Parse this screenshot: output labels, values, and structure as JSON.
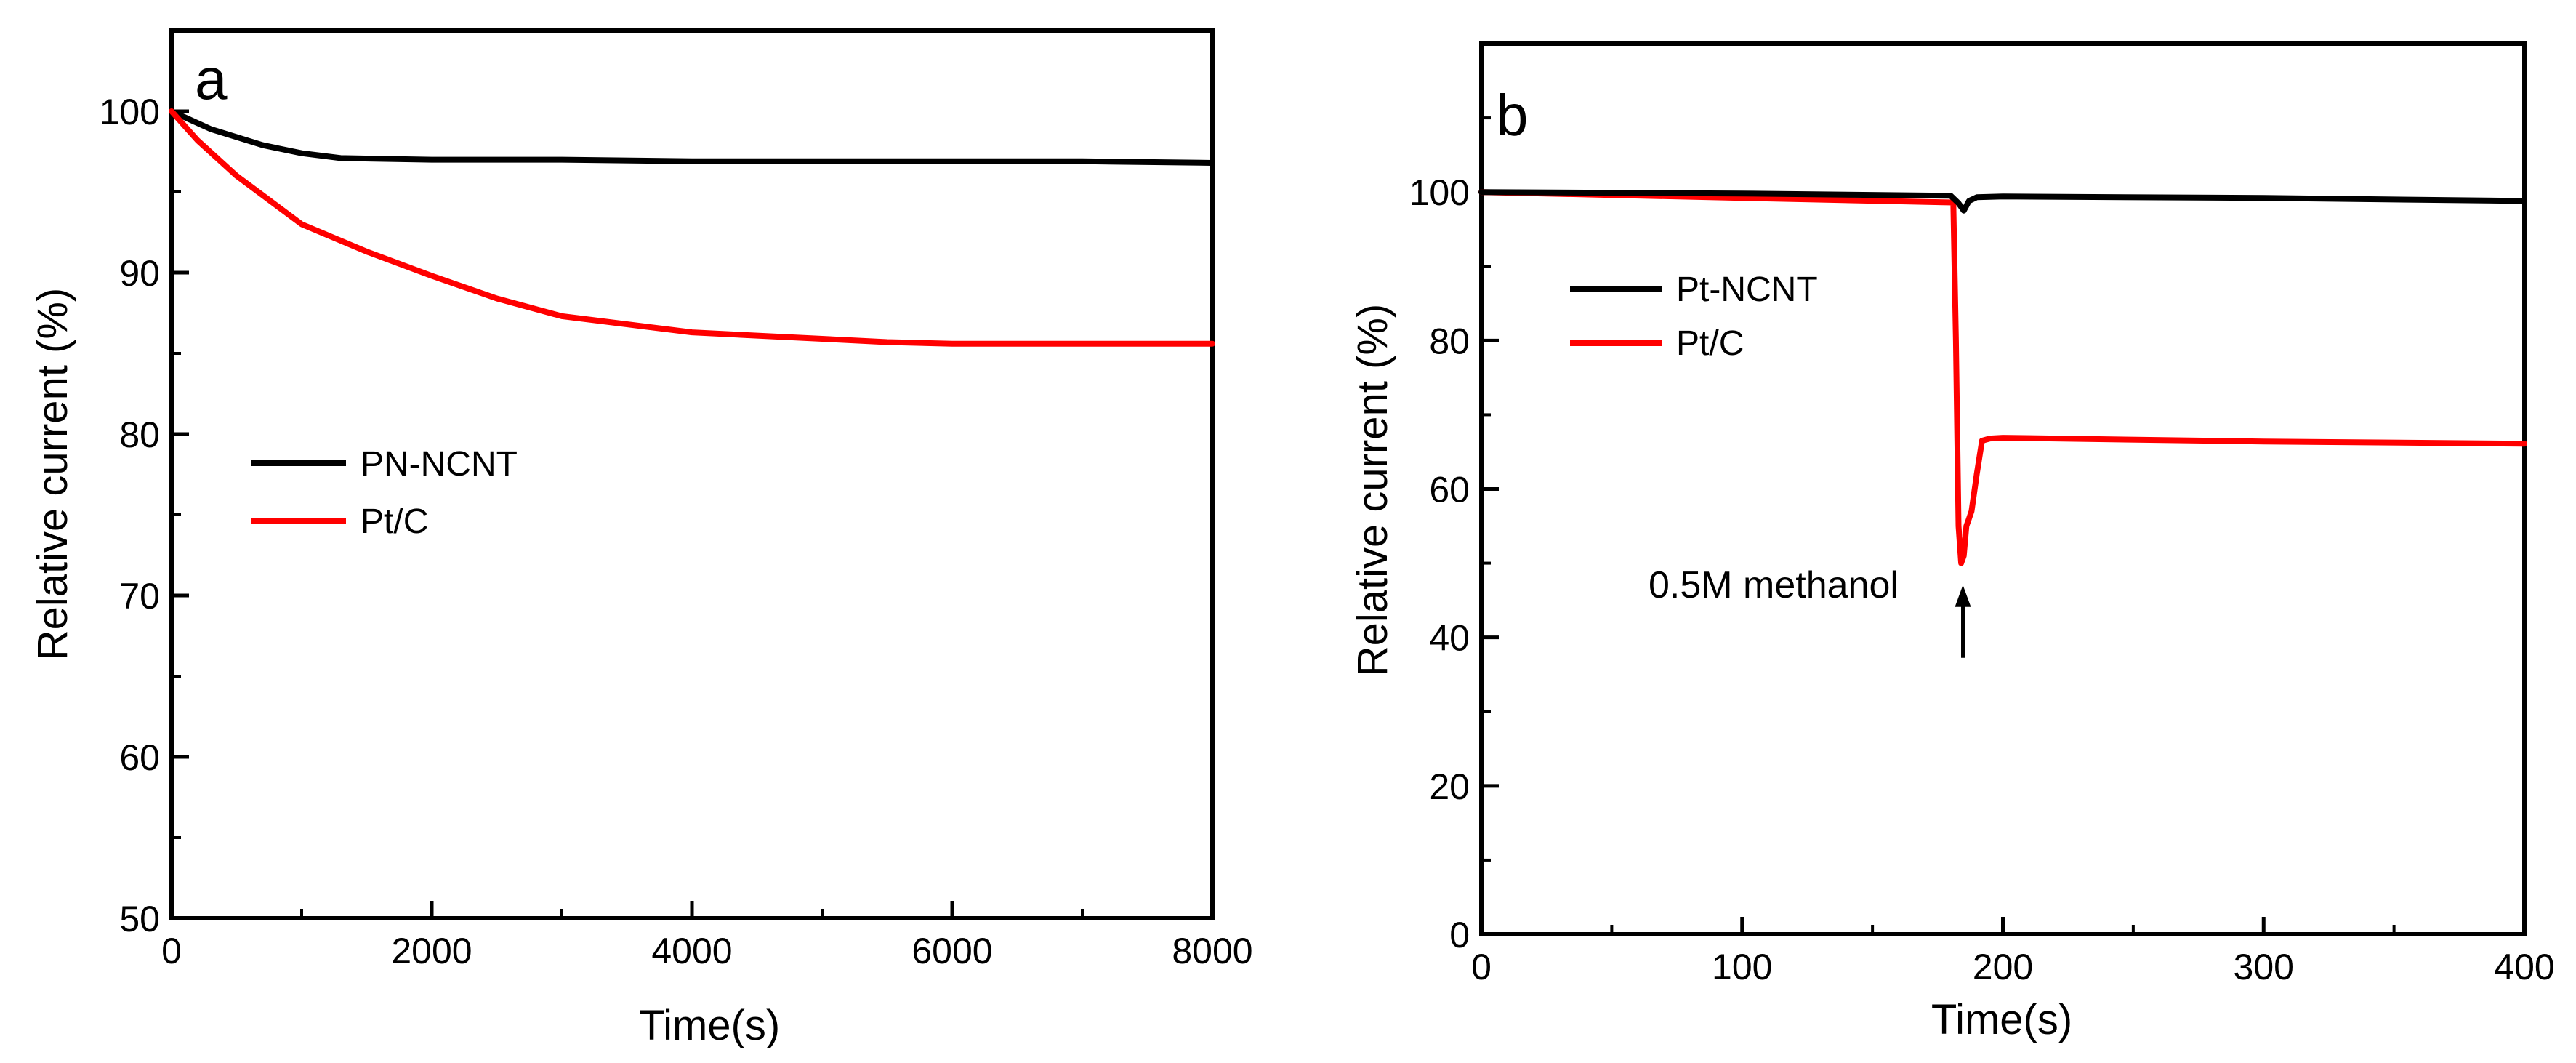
{
  "chart_data": [
    {
      "type": "line",
      "panel_label": "a",
      "xlabel": "Time(s)",
      "ylabel": "Relative current (%)",
      "xlim": [
        0,
        8000
      ],
      "ylim": [
        50,
        105
      ],
      "x_ticks": [
        0,
        2000,
        4000,
        6000,
        8000
      ],
      "y_ticks": [
        50,
        60,
        70,
        80,
        90,
        100
      ],
      "x_tick_labels": [
        "0",
        "2000",
        "4000",
        "6000",
        "8000"
      ],
      "y_tick_labels": [
        "50",
        "60",
        "70",
        "80",
        "90",
        "100"
      ],
      "legend_position": "center-left",
      "series": [
        {
          "name": "PN-NCNT",
          "color": "#000000",
          "x": [
            0,
            300,
            700,
            1000,
            1300,
            2000,
            3000,
            4000,
            5000,
            6000,
            7000,
            8000
          ],
          "y": [
            100,
            98.9,
            97.9,
            97.4,
            97.1,
            97.0,
            97.0,
            96.9,
            96.9,
            96.9,
            96.9,
            96.8
          ]
        },
        {
          "name": "Pt/C",
          "color": "#ff0000",
          "x": [
            0,
            200,
            500,
            1000,
            1500,
            2000,
            2500,
            3000,
            3500,
            4000,
            4500,
            5000,
            5500,
            6000,
            7000,
            8000
          ],
          "y": [
            100,
            98.2,
            96.0,
            93.0,
            91.3,
            89.8,
            88.4,
            87.3,
            86.8,
            86.3,
            86.1,
            85.9,
            85.7,
            85.6,
            85.6,
            85.6
          ]
        }
      ]
    },
    {
      "type": "line",
      "panel_label": "b",
      "xlabel": "Time(s)",
      "ylabel": "Relative current (%)",
      "xlim": [
        0,
        400
      ],
      "ylim": [
        0,
        120
      ],
      "x_ticks": [
        0,
        100,
        200,
        300,
        400
      ],
      "y_ticks": [
        0,
        20,
        40,
        60,
        80,
        100
      ],
      "x_tick_labels": [
        "0",
        "100",
        "200",
        "300",
        "400"
      ],
      "y_tick_labels": [
        "0",
        "20",
        "40",
        "60",
        "80",
        "100"
      ],
      "legend_position": "upper-left",
      "annotation": {
        "text": "0.5M methanol",
        "x": 183
      },
      "series": [
        {
          "name": "Pt-NCNT",
          "color": "#000000",
          "x": [
            0,
            100,
            180,
            183,
            185,
            187,
            190,
            200,
            300,
            400
          ],
          "y": [
            100,
            99.8,
            99.5,
            98.5,
            97.5,
            98.8,
            99.3,
            99.4,
            99.2,
            98.8
          ],
          "draw_order": 1
        },
        {
          "name": "Pt/C",
          "color": "#ff0000",
          "x": [
            0,
            100,
            181,
            182,
            183,
            184,
            185,
            186,
            187,
            188,
            190,
            192,
            195,
            200,
            300,
            400
          ],
          "y": [
            100,
            99.2,
            98.6,
            80,
            55,
            50,
            51,
            55,
            56,
            57,
            62,
            66.5,
            66.8,
            66.9,
            66.4,
            66.1
          ],
          "draw_order": 0
        }
      ]
    }
  ]
}
